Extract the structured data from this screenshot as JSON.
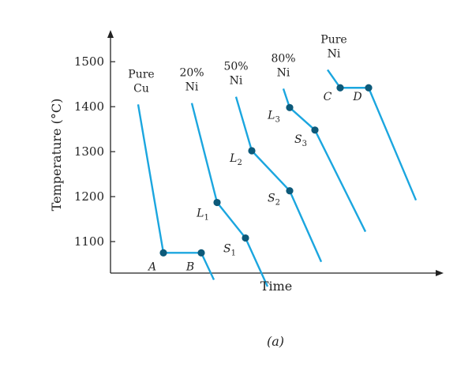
{
  "chart_data": {
    "type": "line",
    "title": "",
    "xlabel": "Time",
    "ylabel": "Temperature (°C)",
    "caption": "(a)",
    "ylim": [
      1030,
      1560
    ],
    "xlim": [
      0,
      100
    ],
    "y_ticks": [
      1100,
      1200,
      1300,
      1400,
      1500
    ],
    "grid": false,
    "series_color": "#1ba6df",
    "point_color": "#0d5a7a",
    "series": [
      {
        "label_lines": [
          "Pure",
          "Cu"
        ],
        "label_x": 5,
        "x": [
          4,
          12,
          24,
          28
        ],
        "y": [
          1405,
          1075,
          1075,
          1015
        ]
      },
      {
        "label_lines": [
          "20%",
          "Ni"
        ],
        "label_x": 21,
        "x": [
          21,
          29,
          38,
          45
        ],
        "y": [
          1408,
          1187,
          1108,
          1000
        ]
      },
      {
        "label_lines": [
          "50%",
          "Ni"
        ],
        "label_x": 35,
        "x": [
          35,
          40,
          52,
          62
        ],
        "y": [
          1422,
          1302,
          1213,
          1055
        ]
      },
      {
        "label_lines": [
          "80%",
          "Ni"
        ],
        "label_x": 50,
        "x": [
          50,
          52,
          60,
          76
        ],
        "y": [
          1440,
          1398,
          1348,
          1122
        ]
      },
      {
        "label_lines": [
          "Pure",
          "Ni"
        ],
        "label_x": 66,
        "x": [
          64,
          68,
          77,
          92
        ],
        "y": [
          1482,
          1442,
          1442,
          1192
        ]
      }
    ],
    "points": [
      {
        "label": "A",
        "sub": "",
        "x": 12,
        "y": 1075,
        "label_dx": -14,
        "label_dy": 22
      },
      {
        "label": "B",
        "sub": "",
        "x": 24,
        "y": 1075,
        "label_dx": -14,
        "label_dy": 22
      },
      {
        "label": "L",
        "sub": "1",
        "x": 29,
        "y": 1187,
        "label_dx": -18,
        "label_dy": 18
      },
      {
        "label": "S",
        "sub": "1",
        "x": 38,
        "y": 1108,
        "label_dx": -20,
        "label_dy": 18
      },
      {
        "label": "L",
        "sub": "2",
        "x": 40,
        "y": 1302,
        "label_dx": -20,
        "label_dy": 14
      },
      {
        "label": "S",
        "sub": "2",
        "x": 52,
        "y": 1213,
        "label_dx": -20,
        "label_dy": 14
      },
      {
        "label": "L",
        "sub": "3",
        "x": 52,
        "y": 1398,
        "label_dx": -20,
        "label_dy": 14
      },
      {
        "label": "S",
        "sub": "3",
        "x": 60,
        "y": 1348,
        "label_dx": -18,
        "label_dy": 16
      },
      {
        "label": "C",
        "sub": "",
        "x": 68,
        "y": 1442,
        "label_dx": -16,
        "label_dy": 16
      },
      {
        "label": "D",
        "sub": "",
        "x": 77,
        "y": 1442,
        "label_dx": -14,
        "label_dy": 16
      }
    ]
  }
}
